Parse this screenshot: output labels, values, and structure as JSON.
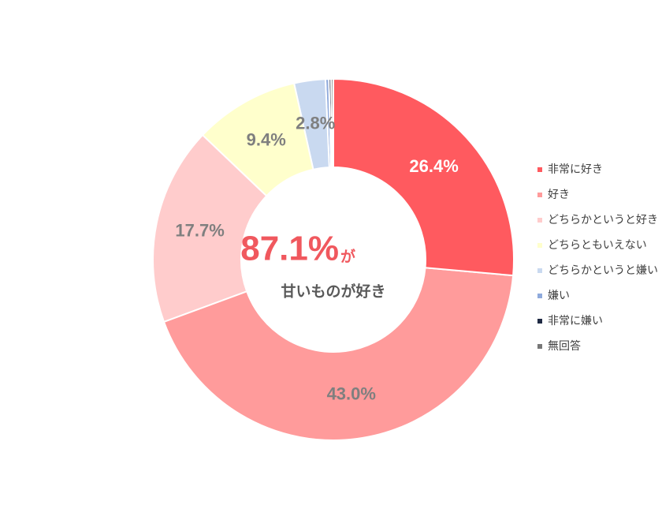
{
  "chart_data": {
    "type": "donut",
    "categories": [
      "非常に好き",
      "好き",
      "どちらかというと好き",
      "どちらともいえない",
      "どちらかというと嫌い",
      "嫌い",
      "非常に嫌い",
      "無回答"
    ],
    "values": [
      26.4,
      43.0,
      17.7,
      9.4,
      2.8,
      0.3,
      0.2,
      0.2
    ],
    "value_labels": [
      "26.4%",
      "43.0%",
      "17.7%",
      "9.4%",
      "2.8%",
      null,
      null,
      null
    ],
    "colors": [
      "#ff5a5f",
      "#ff9b9b",
      "#ffcccc",
      "#ffffcc",
      "#c9d9f0",
      "#8faadc",
      "#1f2a44",
      "#777777"
    ],
    "value_label_colors": [
      "#ffffff",
      "#7f7f7f",
      "#7f7f7f",
      "#7f7f7f",
      "#7f7f7f",
      null,
      null,
      null
    ],
    "legend": "right",
    "annotations": [
      "87.1%",
      "が",
      "甘いものが好き"
    ]
  }
}
